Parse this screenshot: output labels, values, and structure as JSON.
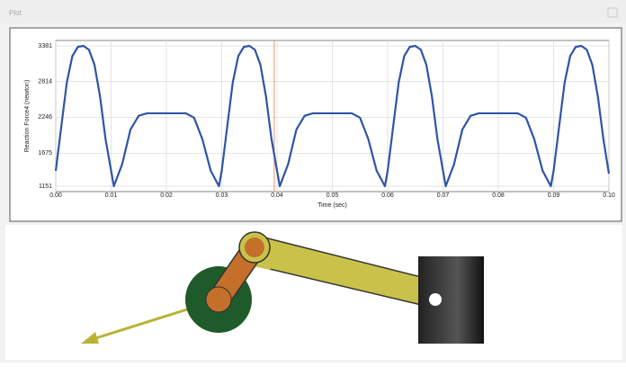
{
  "window": {
    "title": "Plot"
  },
  "chart_data": {
    "type": "line",
    "xlabel": "Time (sec)",
    "ylabel": "Reaction Force4 (newton)",
    "x": [
      0,
      0.001,
      0.002,
      0.003,
      0.004,
      0.005,
      0.006,
      0.007,
      0.008,
      0.009,
      0.0105,
      0.012,
      0.0135,
      0.015,
      0.0165,
      0.0235,
      0.025,
      0.0265,
      0.028,
      0.0295,
      0.03,
      0.031,
      0.032,
      0.033,
      0.034,
      0.035,
      0.036,
      0.037,
      0.038,
      0.039,
      0.0405,
      0.042,
      0.0435,
      0.045,
      0.0465,
      0.0535,
      0.055,
      0.0565,
      0.058,
      0.0595,
      0.06,
      0.061,
      0.062,
      0.063,
      0.064,
      0.065,
      0.066,
      0.067,
      0.068,
      0.069,
      0.0705,
      0.072,
      0.0735,
      0.075,
      0.0765,
      0.0835,
      0.085,
      0.0865,
      0.088,
      0.0895,
      0.09,
      0.091,
      0.092,
      0.093,
      0.094,
      0.095,
      0.096,
      0.097,
      0.098,
      0.099,
      0.1
    ],
    "series": [
      {
        "color": "#2f54a8",
        "values": [
          1394,
          2100,
          2800,
          3220,
          3365,
          3381,
          3320,
          3080,
          2580,
          1900,
          1151,
          1500,
          2050,
          2270,
          2310,
          2310,
          2240,
          1900,
          1400,
          1151,
          1394,
          2100,
          2800,
          3220,
          3365,
          3381,
          3320,
          3080,
          2580,
          1900,
          1151,
          1500,
          2050,
          2270,
          2310,
          2310,
          2240,
          1900,
          1400,
          1151,
          1394,
          2100,
          2800,
          3220,
          3365,
          3381,
          3320,
          3080,
          2580,
          1900,
          1151,
          1500,
          2050,
          2270,
          2310,
          2310,
          2240,
          1900,
          1400,
          1151,
          1394,
          2100,
          2800,
          3220,
          3365,
          3381,
          3320,
          3080,
          2580,
          1900,
          1350
        ]
      }
    ],
    "xlim": [
      0,
      0.1
    ],
    "xticks": [
      {
        "value": 0,
        "label": "0.00"
      },
      {
        "value": 0.01,
        "label": "0.01"
      },
      {
        "value": 0.02,
        "label": "0.02"
      },
      {
        "value": 0.03,
        "label": "0.03"
      },
      {
        "value": 0.04,
        "label": "0.04"
      },
      {
        "value": 0.05,
        "label": "0.05"
      },
      {
        "value": 0.06,
        "label": "0.06"
      },
      {
        "value": 0.07,
        "label": "0.07"
      },
      {
        "value": 0.08,
        "label": "0.08"
      },
      {
        "value": 0.09,
        "label": "0.09"
      },
      {
        "value": 0.1,
        "label": "0.10"
      }
    ],
    "ylim": [
      1151,
      3381
    ],
    "yticks": [
      1151,
      1675,
      2246,
      2814,
      3381
    ],
    "grid": true,
    "cursor": 0.0395,
    "cursor_color": "#e8956a"
  }
}
